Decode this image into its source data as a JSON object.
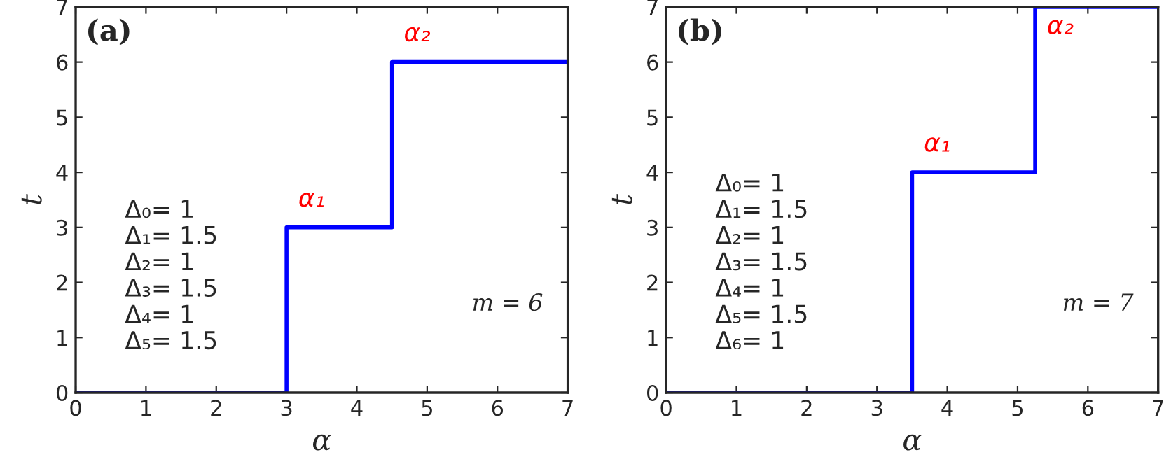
{
  "chart_data": [
    {
      "type": "step",
      "xlabel": "α",
      "ylabel": "t",
      "x": [
        0,
        3,
        4.5,
        7
      ],
      "series": [
        {
          "color": "#0000ff",
          "values": [
            0,
            3,
            6,
            6
          ]
        }
      ],
      "xlim": [
        0,
        7
      ],
      "ylim": [
        0,
        7
      ],
      "xticks": [
        0,
        1,
        2,
        3,
        4,
        5,
        6,
        7
      ],
      "yticks": [
        0,
        1,
        2,
        3,
        4,
        5,
        6,
        7
      ],
      "grid": false,
      "legend": false,
      "annotations": [
        "(a)",
        "Δ₀= 1\nΔ₁= 1.5\nΔ₂= 1\nΔ₃= 1.5\nΔ₄= 1\nΔ₅= 1.5",
        "m = 6",
        {
          "text": "α₁",
          "x": 3,
          "y": 3
        },
        {
          "text": "α₂",
          "x": 4.5,
          "y": 6
        }
      ]
    },
    {
      "type": "step",
      "xlabel": "α",
      "ylabel": "t",
      "x": [
        0,
        3.5,
        5.25,
        7
      ],
      "series": [
        {
          "color": "#0000ff",
          "values": [
            0,
            4,
            7,
            7
          ]
        }
      ],
      "xlim": [
        0,
        7
      ],
      "ylim": [
        0,
        7
      ],
      "xticks": [
        0,
        1,
        2,
        3,
        4,
        5,
        6,
        7
      ],
      "yticks": [
        0,
        1,
        2,
        3,
        4,
        5,
        6,
        7
      ],
      "grid": false,
      "legend": false,
      "annotations": [
        "(b)",
        "Δ₀= 1\nΔ₁= 1.5\nΔ₂= 1\nΔ₃= 1.5\nΔ₄= 1\nΔ₅= 1.5\nΔ₆= 1",
        "m = 7",
        {
          "text": "α₁",
          "x": 3.5,
          "y": 4
        },
        {
          "text": "α₂",
          "x": 5.25,
          "y": 7
        }
      ]
    }
  ]
}
